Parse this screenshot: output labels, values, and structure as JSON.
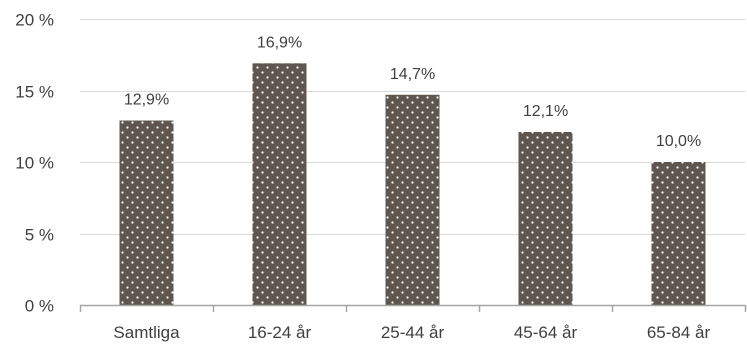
{
  "chart_data": {
    "type": "bar",
    "title": "",
    "xlabel": "",
    "ylabel": "",
    "categories": [
      "Samtliga",
      "16-24 år",
      "25-44 år",
      "45-64 år",
      "65-84 år"
    ],
    "values": [
      12.9,
      16.9,
      14.7,
      12.1,
      10.0
    ],
    "data_labels": [
      "12,9%",
      "16,9%",
      "14,7%",
      "12,1%",
      "10,0%"
    ],
    "ylim": [
      0,
      20
    ],
    "yticks": [
      0,
      5,
      10,
      15,
      20
    ],
    "ytick_labels": [
      "0 %",
      "5 %",
      "10 %",
      "15 %",
      "20 %"
    ],
    "grid": true,
    "legend": "none",
    "colors": {
      "bar": "#5f574f",
      "bar_dots": "#ffffff",
      "grid": "#d9d9d9",
      "axis": "#a6a6a6",
      "text": "#404040"
    }
  }
}
